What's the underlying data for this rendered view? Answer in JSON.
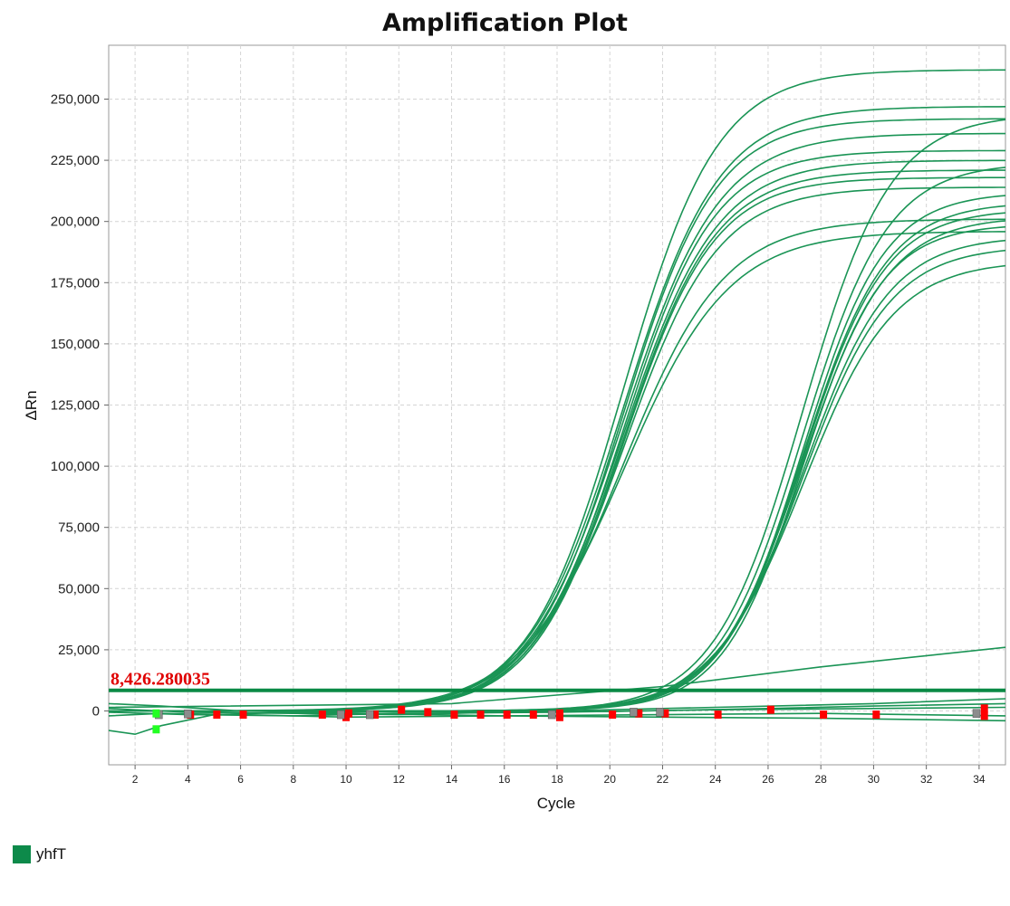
{
  "chart_data": {
    "type": "line",
    "title": "Amplification Plot",
    "xlabel": "Cycle",
    "ylabel": "ΔRn",
    "xlim": [
      1,
      35
    ],
    "ylim": [
      -22000,
      272000
    ],
    "x_ticks": [
      2,
      4,
      6,
      8,
      10,
      12,
      14,
      16,
      18,
      20,
      22,
      24,
      26,
      28,
      30,
      32,
      34
    ],
    "y_ticks": [
      0,
      25000,
      50000,
      75000,
      100000,
      125000,
      150000,
      175000,
      200000,
      225000,
      250000
    ],
    "y_tick_labels": [
      "0",
      "25,000",
      "50,000",
      "75,000",
      "100,000",
      "125,000",
      "150,000",
      "175,000",
      "200,000",
      "225,000",
      "250,000"
    ],
    "grid": true,
    "threshold": {
      "value": 8426.280035,
      "label": "8,426.280035",
      "color": "#e00000",
      "line_color": "#0a8a45"
    },
    "series_color": "#1a9455",
    "legend": {
      "position": "bottom-left",
      "entries": [
        {
          "name": "yhfT",
          "color": "#0d8a4a"
        }
      ]
    },
    "curve_groups": [
      {
        "midpoint": 20.5,
        "curves": [
          {
            "plateau": 262000,
            "slope": 0.56
          },
          {
            "plateau": 247000,
            "slope": 0.55
          },
          {
            "plateau": 242000,
            "slope": 0.57
          },
          {
            "plateau": 236000,
            "slope": 0.55
          },
          {
            "plateau": 229000,
            "slope": 0.58
          },
          {
            "plateau": 225000,
            "slope": 0.56
          },
          {
            "plateau": 221000,
            "slope": 0.57
          },
          {
            "plateau": 218000,
            "slope": 0.58
          },
          {
            "plateau": 214000,
            "slope": 0.56
          },
          {
            "plateau": 201000,
            "slope": 0.52
          },
          {
            "plateau": 196000,
            "slope": 0.5
          }
        ]
      },
      {
        "midpoint": 27.3,
        "curves": [
          {
            "plateau": 244000,
            "slope": 0.6
          },
          {
            "plateau": 224000,
            "slope": 0.62
          },
          {
            "plateau": 212000,
            "slope": 0.65
          },
          {
            "plateau": 208000,
            "slope": 0.63
          },
          {
            "plateau": 205000,
            "slope": 0.64
          },
          {
            "plateau": 202000,
            "slope": 0.62
          },
          {
            "plateau": 199000,
            "slope": 0.66
          },
          {
            "plateau": 194000,
            "slope": 0.61
          },
          {
            "plateau": 190000,
            "slope": 0.6
          },
          {
            "plateau": 184000,
            "slope": 0.58
          }
        ]
      }
    ],
    "linear_curves": [
      {
        "x": [
          1,
          14,
          22,
          28,
          35
        ],
        "y": [
          1500,
          3000,
          10000,
          18000,
          26000
        ]
      }
    ],
    "baseline_curves": [
      {
        "x": [
          1,
          2,
          3,
          5,
          8,
          14,
          20,
          26,
          30,
          35
        ],
        "y": [
          -8000,
          -9500,
          -6000,
          -1500,
          -500,
          -300,
          -200,
          1000,
          2000,
          3000
        ]
      },
      {
        "x": [
          1,
          3,
          6,
          10,
          16,
          22,
          28,
          35
        ],
        "y": [
          3000,
          2000,
          0,
          -1000,
          -2000,
          -2500,
          -3000,
          -4000
        ]
      },
      {
        "x": [
          1,
          3,
          6,
          10,
          16,
          22,
          28,
          35
        ],
        "y": [
          -2000,
          -1000,
          -1500,
          -2500,
          -2000,
          -1500,
          -1000,
          -2000
        ]
      },
      {
        "x": [
          1,
          4,
          8,
          12,
          18,
          24,
          30,
          35
        ],
        "y": [
          1000,
          -500,
          -1000,
          -1500,
          0,
          1500,
          3000,
          5000
        ]
      },
      {
        "x": [
          1,
          4,
          8,
          12,
          18,
          24,
          30,
          35
        ],
        "y": [
          -500,
          -1500,
          -2000,
          -1000,
          -500,
          500,
          1000,
          1500
        ]
      }
    ],
    "markers": [
      {
        "x": 4.1,
        "y": -1500,
        "color": "red"
      },
      {
        "x": 5.1,
        "y": -1500,
        "color": "red"
      },
      {
        "x": 6.1,
        "y": -1500,
        "color": "red"
      },
      {
        "x": 9.1,
        "y": -1500,
        "color": "red"
      },
      {
        "x": 10.0,
        "y": -2500,
        "color": "red"
      },
      {
        "x": 10.1,
        "y": -1000,
        "color": "red"
      },
      {
        "x": 11.1,
        "y": -1500,
        "color": "red"
      },
      {
        "x": 12.1,
        "y": 500,
        "color": "red"
      },
      {
        "x": 13.1,
        "y": -500,
        "color": "red"
      },
      {
        "x": 14.1,
        "y": -1500,
        "color": "red"
      },
      {
        "x": 15.1,
        "y": -1500,
        "color": "red"
      },
      {
        "x": 16.1,
        "y": -1500,
        "color": "red"
      },
      {
        "x": 17.1,
        "y": -1500,
        "color": "red"
      },
      {
        "x": 18.1,
        "y": -1000,
        "color": "red"
      },
      {
        "x": 18.1,
        "y": -2500,
        "color": "red"
      },
      {
        "x": 20.1,
        "y": -1500,
        "color": "red"
      },
      {
        "x": 21.1,
        "y": -1000,
        "color": "red"
      },
      {
        "x": 22.1,
        "y": -1000,
        "color": "red"
      },
      {
        "x": 24.1,
        "y": -1500,
        "color": "red"
      },
      {
        "x": 26.1,
        "y": 500,
        "color": "red"
      },
      {
        "x": 28.1,
        "y": -1500,
        "color": "red"
      },
      {
        "x": 30.1,
        "y": -1500,
        "color": "red"
      },
      {
        "x": 34.2,
        "y": 1000,
        "color": "red"
      },
      {
        "x": 34.2,
        "y": -2000,
        "color": "red"
      },
      {
        "x": 2.9,
        "y": -1500,
        "color": "gray"
      },
      {
        "x": 4.0,
        "y": -1200,
        "color": "gray"
      },
      {
        "x": 9.8,
        "y": -1500,
        "color": "gray"
      },
      {
        "x": 10.9,
        "y": -1500,
        "color": "gray"
      },
      {
        "x": 17.8,
        "y": -1500,
        "color": "gray"
      },
      {
        "x": 20.9,
        "y": -500,
        "color": "gray"
      },
      {
        "x": 21.9,
        "y": -500,
        "color": "gray"
      },
      {
        "x": 33.9,
        "y": -1000,
        "color": "gray"
      },
      {
        "x": 2.8,
        "y": -1000,
        "color": "lime"
      },
      {
        "x": 2.8,
        "y": -7500,
        "color": "lime"
      }
    ]
  }
}
